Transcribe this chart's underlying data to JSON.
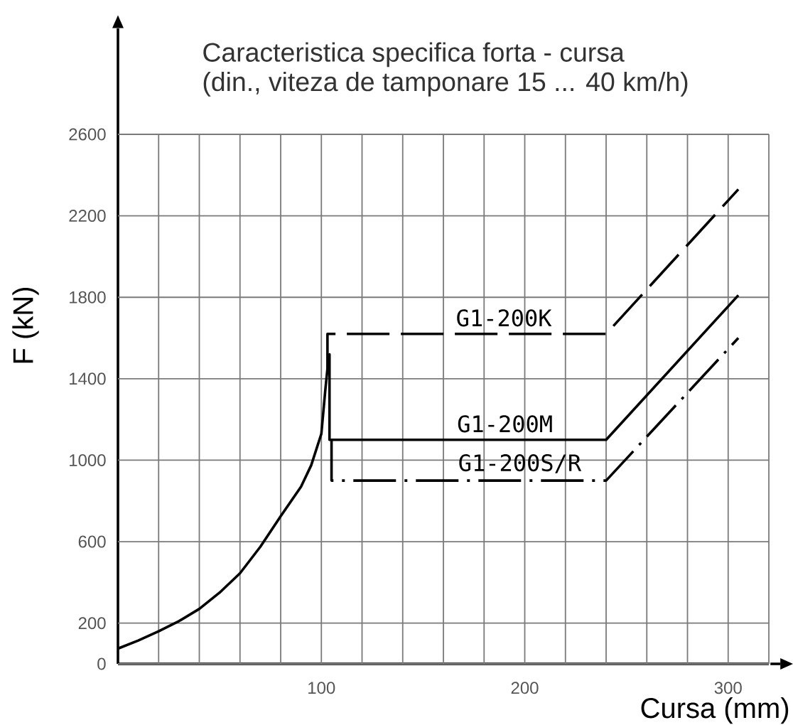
{
  "chart_data": {
    "type": "line",
    "title": "Caracteristica specifica forta - cursa",
    "subtitle": "(din., viteza de tamponare 15 ... 40 km/h)",
    "xlabel": "Cursa (mm)",
    "ylabel": "F (kN)",
    "xlim": [
      0,
      320
    ],
    "ylim": [
      0,
      3120
    ],
    "xticks": [
      {
        "value": 20,
        "label": null
      },
      {
        "value": 40,
        "label": null
      },
      {
        "value": 60,
        "label": null
      },
      {
        "value": 80,
        "label": null
      },
      100,
      {
        "value": 120,
        "label": null
      },
      {
        "value": 140,
        "label": null
      },
      {
        "value": 160,
        "label": null
      },
      {
        "value": 180,
        "label": null
      },
      200,
      {
        "value": 220,
        "label": null
      },
      {
        "value": 240,
        "label": null
      },
      {
        "value": 260,
        "label": null
      },
      {
        "value": 280,
        "label": null
      },
      300,
      {
        "value": 320,
        "label": null
      }
    ],
    "yticks": [
      0,
      200,
      600,
      1000,
      1400,
      1800,
      2200,
      2600
    ],
    "grid": true,
    "series": [
      {
        "name": "G1-200K",
        "color": "#000000",
        "line_style": "dashed",
        "x": [
          103,
          103,
          240,
          305
        ],
        "values": [
          1450,
          1620,
          1620,
          2330
        ]
      },
      {
        "name": "G1-200M",
        "color": "#000000",
        "line_style": "solid",
        "x": [
          0,
          10,
          20,
          30,
          40,
          50,
          60,
          70,
          80,
          90,
          95,
          100,
          102,
          103,
          104,
          104,
          240,
          305
        ],
        "values": [
          75,
          115,
          160,
          210,
          270,
          350,
          445,
          575,
          725,
          870,
          975,
          1130,
          1350,
          1450,
          1520,
          1100,
          1100,
          1810
        ]
      },
      {
        "name": "G1-200S/R",
        "color": "#000000",
        "line_style": "dashdot",
        "x": [
          105,
          105,
          240,
          305
        ],
        "values": [
          1100,
          900,
          900,
          1600
        ]
      }
    ]
  }
}
